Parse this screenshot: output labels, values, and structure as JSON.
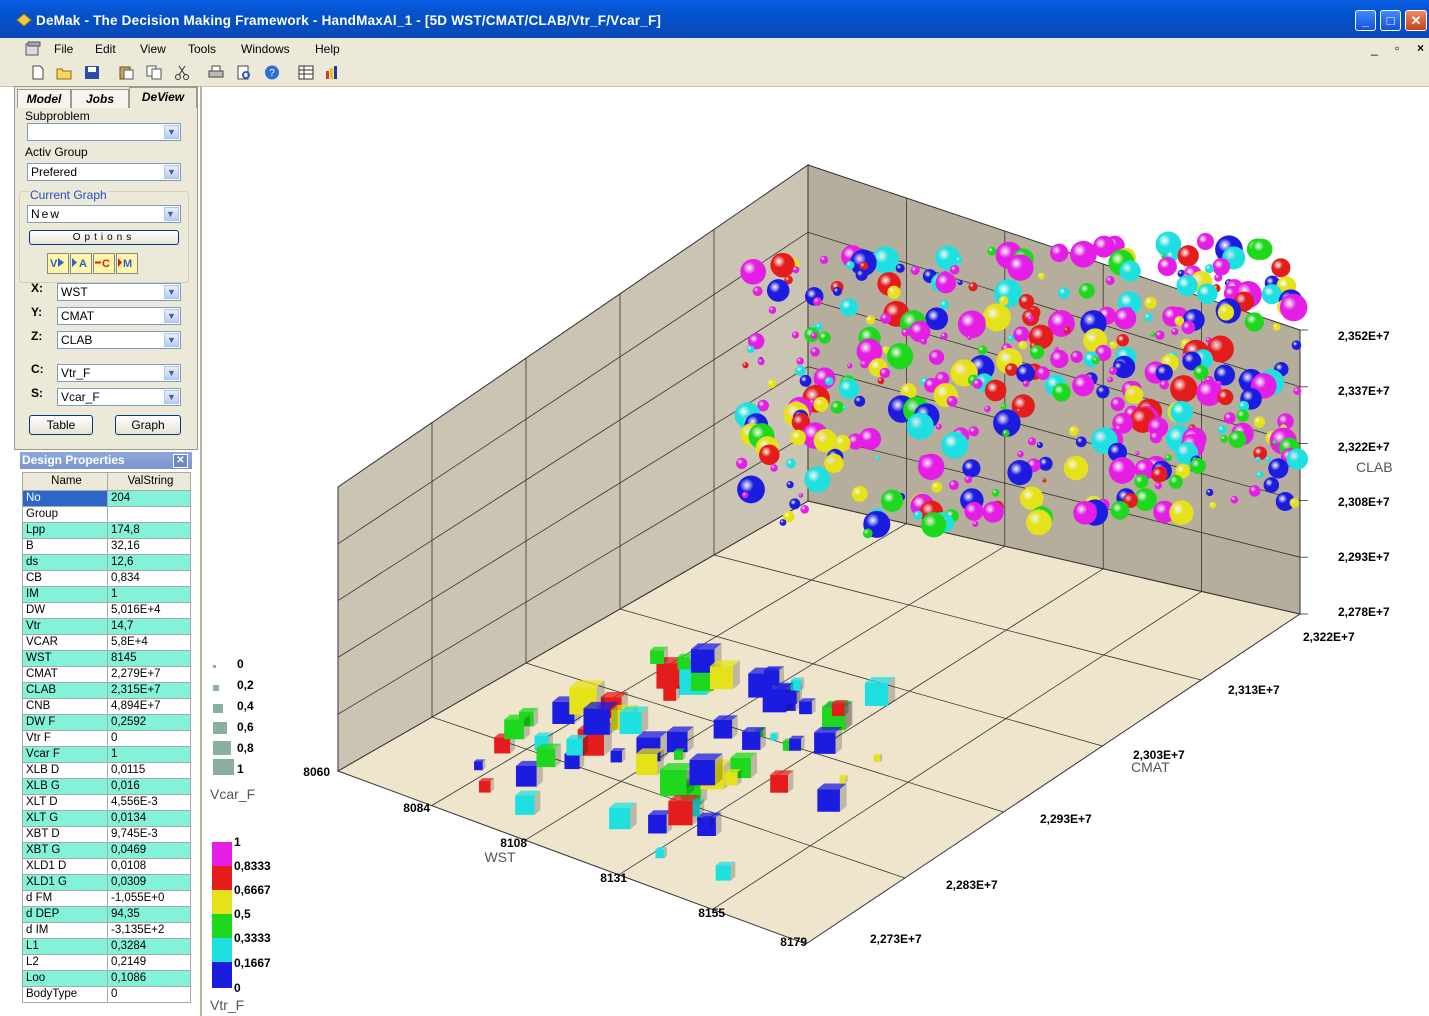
{
  "window": {
    "title": "DeMak - The Decision Making Framework - HandMaxAl_1 - [5D WST/CMAT/CLAB/Vtr_F/Vcar_F]"
  },
  "menu": [
    "File",
    "Edit",
    "View",
    "Tools",
    "Windows",
    "Help"
  ],
  "toolbar_icons": [
    "new-icon",
    "open-icon",
    "save-icon",
    "paste-icon",
    "copy-icon",
    "cut-icon",
    "print-icon",
    "print-preview-icon",
    "help-icon",
    "table-icon",
    "chart-icon"
  ],
  "tabs": [
    "Model",
    "Jobs",
    "DeView"
  ],
  "panel": {
    "subproblem_label": "Subproblem",
    "subproblem_value": "",
    "activ_group_label": "Activ Group",
    "activ_group_value": "Prefered",
    "current_graph_label": "Current Graph",
    "current_graph_value": "New",
    "options_label": "Options",
    "axes": [
      {
        "key": "X:",
        "value": "WST"
      },
      {
        "key": "Y:",
        "value": "CMAT"
      },
      {
        "key": "Z:",
        "value": "CLAB"
      },
      {
        "key": "C:",
        "value": "Vtr_F"
      },
      {
        "key": "S:",
        "value": "Vcar_F"
      }
    ],
    "table_button": "Table",
    "graph_button": "Graph"
  },
  "design_properties": {
    "title": "Design Properties",
    "columns": [
      "Name",
      "ValString"
    ],
    "rows": [
      [
        "No",
        "204"
      ],
      [
        "Group",
        ""
      ],
      [
        "Lpp",
        "174,8"
      ],
      [
        "B",
        "32,16"
      ],
      [
        "ds",
        "12,6"
      ],
      [
        "CB",
        "0,834"
      ],
      [
        "IM",
        "1"
      ],
      [
        "DW",
        "5,016E+4"
      ],
      [
        "Vtr",
        "14,7"
      ],
      [
        "VCAR",
        "5,8E+4"
      ],
      [
        "WST",
        "8145"
      ],
      [
        "CMAT",
        "2,279E+7"
      ],
      [
        "CLAB",
        "2,315E+7"
      ],
      [
        "CNB",
        "4,894E+7"
      ],
      [
        "DW F",
        "0,2592"
      ],
      [
        "Vtr F",
        "0"
      ],
      [
        "Vcar F",
        "1"
      ],
      [
        "XLB D",
        "0,0115"
      ],
      [
        "XLB G",
        "0,016"
      ],
      [
        "XLT D",
        "4,556E-3"
      ],
      [
        "XLT G",
        "0,0134"
      ],
      [
        "XBT D",
        "9,745E-3"
      ],
      [
        "XBT G",
        "0,0469"
      ],
      [
        "XLD1 D",
        "0,0108"
      ],
      [
        "XLD1 G",
        "0,0309"
      ],
      [
        "d FM",
        "-1,055E+0"
      ],
      [
        "d DEP",
        "94,35"
      ],
      [
        "d IM",
        "-3,135E+2"
      ],
      [
        "L1",
        "0,3284"
      ],
      [
        "L2",
        "0,2149"
      ],
      [
        "Loo",
        "0,1086"
      ],
      [
        "BodyType",
        "0"
      ]
    ]
  },
  "size_legend": {
    "labels": [
      "0",
      "0,2",
      "0,4",
      "0,6",
      "0,8",
      "1"
    ],
    "title": "Vcar_F"
  },
  "color_legend": {
    "labels": [
      "1",
      "0,8333",
      "0,6667",
      "0,5",
      "0,3333",
      "0,1667",
      "0"
    ],
    "colors": [
      "#e51ee5",
      "#e51c1c",
      "#e5e21a",
      "#1ed81e",
      "#1ee0e0",
      "#1c1ce0"
    ],
    "title": "Vtr_F"
  },
  "chart_data": {
    "type": "scatter",
    "dimensions": 3,
    "x_axis": {
      "name": "WST",
      "ticks": [
        "8060",
        "8084",
        "8108",
        "8131",
        "8155",
        "8179"
      ],
      "range": [
        8060,
        8179
      ]
    },
    "y_axis": {
      "name": "CMAT",
      "ticks": [
        "2,273E+7",
        "2,283E+7",
        "2,293E+7",
        "2,303E+7",
        "2,313E+7",
        "2,322E+7"
      ],
      "range": [
        22730000.0,
        23220000.0
      ]
    },
    "z_axis": {
      "name": "CLAB",
      "ticks": [
        "2,278E+7",
        "2,293E+7",
        "2,308E+7",
        "2,322E+7",
        "2,337E+7",
        "2,352E+7"
      ],
      "range": [
        22780000.0,
        23520000.0
      ]
    },
    "color_variable": "Vtr_F",
    "size_variable": "Vcar_F",
    "markers": [
      "sphere (3D points)",
      "cube (floor projection)"
    ],
    "note": "Dense cloud of several hundred designs; individual values not labeled"
  }
}
